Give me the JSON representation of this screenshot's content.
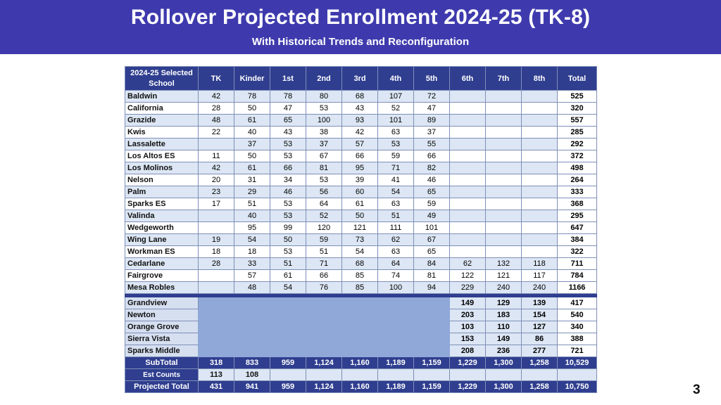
{
  "header": {
    "title": "Rollover Projected Enrollment  2024-25 (TK-8)",
    "subtitle": "With Historical Trends and Reconfiguration"
  },
  "table": {
    "columns": [
      "2024-25 Selected School",
      "TK",
      "Kinder",
      "1st",
      "2nd",
      "3rd",
      "4th",
      "5th",
      "6th",
      "7th",
      "8th",
      "Total"
    ],
    "rows": [
      [
        "Baldwin",
        "42",
        "78",
        "78",
        "80",
        "68",
        "107",
        "72",
        "",
        "",
        "",
        "525"
      ],
      [
        "California",
        "28",
        "50",
        "47",
        "53",
        "43",
        "52",
        "47",
        "",
        "",
        "",
        "320"
      ],
      [
        "Grazide",
        "48",
        "61",
        "65",
        "100",
        "93",
        "101",
        "89",
        "",
        "",
        "",
        "557"
      ],
      [
        "Kwis",
        "22",
        "40",
        "43",
        "38",
        "42",
        "63",
        "37",
        "",
        "",
        "",
        "285"
      ],
      [
        "Lassalette",
        "",
        "37",
        "53",
        "37",
        "57",
        "53",
        "55",
        "",
        "",
        "",
        "292"
      ],
      [
        "Los Altos ES",
        "11",
        "50",
        "53",
        "67",
        "66",
        "59",
        "66",
        "",
        "",
        "",
        "372"
      ],
      [
        "Los Molinos",
        "42",
        "61",
        "66",
        "81",
        "95",
        "71",
        "82",
        "",
        "",
        "",
        "498"
      ],
      [
        "Nelson",
        "20",
        "31",
        "34",
        "53",
        "39",
        "41",
        "46",
        "",
        "",
        "",
        "264"
      ],
      [
        "Palm",
        "23",
        "29",
        "46",
        "56",
        "60",
        "54",
        "65",
        "",
        "",
        "",
        "333"
      ],
      [
        "Sparks ES",
        "17",
        "51",
        "53",
        "64",
        "61",
        "63",
        "59",
        "",
        "",
        "",
        "368"
      ],
      [
        "Valinda",
        "",
        "40",
        "53",
        "52",
        "50",
        "51",
        "49",
        "",
        "",
        "",
        "295"
      ],
      [
        "Wedgeworth",
        "",
        "95",
        "99",
        "120",
        "121",
        "111",
        "101",
        "",
        "",
        "",
        "647"
      ],
      [
        "Wing Lane",
        "19",
        "54",
        "50",
        "59",
        "73",
        "62",
        "67",
        "",
        "",
        "",
        "384"
      ],
      [
        "Workman ES",
        "18",
        "18",
        "53",
        "51",
        "54",
        "63",
        "65",
        "",
        "",
        "",
        "322"
      ],
      [
        "Cedarlane",
        "28",
        "33",
        "51",
        "71",
        "68",
        "64",
        "84",
        "62",
        "132",
        "118",
        "711"
      ],
      [
        "Fairgrove",
        "",
        "57",
        "61",
        "66",
        "85",
        "74",
        "81",
        "122",
        "121",
        "117",
        "784"
      ],
      [
        "Mesa Robles",
        "",
        "48",
        "54",
        "76",
        "85",
        "100",
        "94",
        "229",
        "240",
        "240",
        "1166"
      ]
    ],
    "middle_schools": [
      [
        "Grandview",
        "149",
        "129",
        "139",
        "417"
      ],
      [
        "Newton",
        "203",
        "183",
        "154",
        "540"
      ],
      [
        "Orange Grove",
        "103",
        "110",
        "127",
        "340"
      ],
      [
        "Sierra Vista",
        "153",
        "149",
        "86",
        "388"
      ],
      [
        "Sparks Middle",
        "208",
        "236",
        "277",
        "721"
      ]
    ],
    "subtotal": [
      "SubTotal",
      "318",
      "833",
      "959",
      "1,124",
      "1,160",
      "1,189",
      "1,159",
      "1,229",
      "1,300",
      "1,258",
      "10,529"
    ],
    "est_counts": [
      "Est Counts",
      "113",
      "108"
    ],
    "projected_total": [
      "Projected Total",
      "431",
      "941",
      "959",
      "1,124",
      "1,160",
      "1,189",
      "1,159",
      "1,229",
      "1,300",
      "1,258",
      "10,750"
    ]
  },
  "page_number": "3",
  "colors": {
    "header_bg": "#3e3aad",
    "table_header_bg": "#2f3e8f",
    "row_light": "#dce6f4",
    "blank_block": "#8fa8d8"
  }
}
